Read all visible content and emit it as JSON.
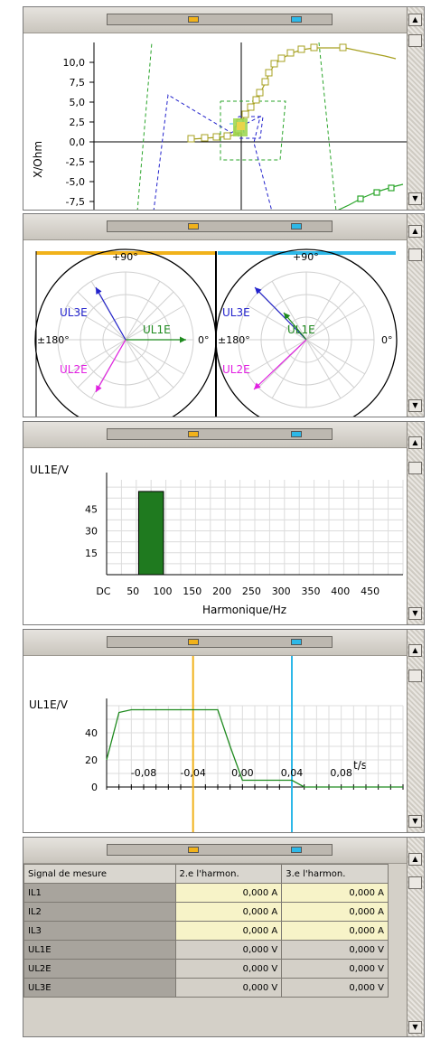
{
  "colors": {
    "cursor1": "#f1b21b",
    "cursor2": "#2db8e8",
    "ul1e": "#1f8a1f",
    "ul2e": "#e21fe2",
    "ul3e": "#2222cc",
    "impedance_curve": "#a7a020",
    "zone_green": "#2aa52a",
    "zone_blue": "#2222cc"
  },
  "impedance": {
    "ylabel": "X/Ohm",
    "yticks": [
      "10,0",
      "7,5",
      "5,0",
      "2,5",
      "0,0",
      "-2,5",
      "-5,0",
      "-7,5"
    ]
  },
  "phasor": {
    "diagrams": [
      {
        "top": "+90°",
        "left": "±180°",
        "right": "0°",
        "labels": {
          "ul3e": "UL3E",
          "ul1e": "UL1E",
          "ul2e": "UL2E"
        }
      },
      {
        "top": "+90°",
        "left": "±180°",
        "right": "0°",
        "labels": {
          "ul3e": "UL3E",
          "ul1e": "UL1E",
          "ul2e": "UL2E"
        }
      }
    ]
  },
  "harmonics": {
    "ylabel": "UL1E/V",
    "xlabel": "Harmonique/Hz",
    "xticks": [
      "DC",
      "50",
      "100",
      "150",
      "200",
      "250",
      "300",
      "350",
      "400",
      "450"
    ],
    "yticks": [
      "45",
      "30",
      "15"
    ],
    "chart_data": {
      "type": "bar",
      "categories": [
        "DC",
        "50",
        "100",
        "150",
        "200",
        "250",
        "300",
        "350",
        "400",
        "450"
      ],
      "values": [
        0,
        57,
        0,
        0,
        0,
        0,
        0,
        0,
        0,
        0
      ],
      "xlabel": "Harmonique/Hz",
      "ylabel": "UL1E/V",
      "grid": true
    }
  },
  "timesignal": {
    "ylabel": "UL1E/V",
    "xlabel": "t/s",
    "xticks": [
      "-0,08",
      "-0,04",
      "0,00",
      "0,04",
      "0,08"
    ],
    "yticks": [
      "40",
      "20",
      "0"
    ],
    "cursor1": -0.04,
    "cursor2": 0.04,
    "chart_data": {
      "type": "line",
      "x": [
        -0.11,
        -0.1,
        -0.09,
        -0.08,
        -0.06,
        -0.04,
        -0.03,
        -0.02,
        -0.01,
        0.0,
        0.04,
        0.05,
        0.06,
        0.1,
        0.13
      ],
      "y": [
        20,
        55,
        57,
        57,
        57,
        57,
        57,
        57,
        30,
        5,
        5,
        0,
        0,
        0,
        0
      ],
      "xlabel": "t/s",
      "ylabel": "UL1E/V",
      "grid": true
    }
  },
  "table": {
    "headers": [
      "Signal de mesure",
      "2.e l'harmon.",
      "3.e l'harmon."
    ],
    "rows": [
      {
        "name": "IL1",
        "v2": "0,000  A",
        "v3": "0,000  A"
      },
      {
        "name": "IL2",
        "v2": "0,000  A",
        "v3": "0,000  A"
      },
      {
        "name": "IL3",
        "v2": "0,000  A",
        "v3": "0,000  A"
      },
      {
        "name": "UL1E",
        "v2": "0,000  V",
        "v3": "0,000  V"
      },
      {
        "name": "UL2E",
        "v2": "0,000  V",
        "v3": "0,000  V"
      },
      {
        "name": "UL3E",
        "v2": "0,000  V",
        "v3": "0,000  V"
      }
    ]
  }
}
